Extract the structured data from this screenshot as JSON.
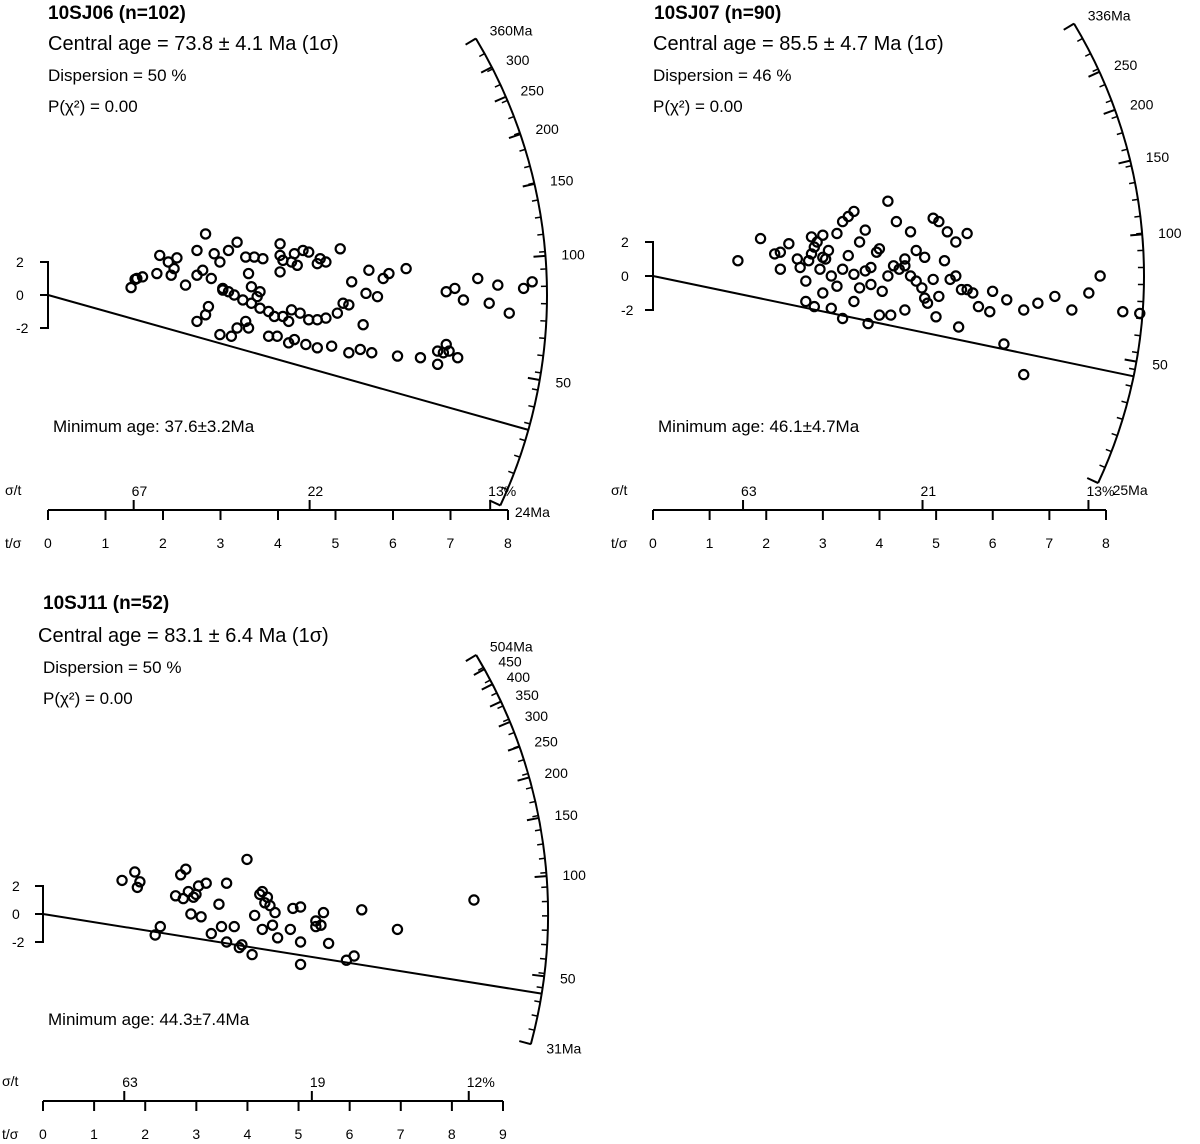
{
  "chart_data": [
    {
      "type": "scatter",
      "title": "10SJ06 (n=102)",
      "central_age": "Central age = 73.8 ± 4.1 Ma (1σ)",
      "dispersion": "Dispersion = 50 %",
      "p_chi2": "P(χ²) = 0.00",
      "minimum_age": "Minimum age: 37.6±3.2Ma",
      "min_age_ma": 37.6,
      "y_ticks": [
        "2",
        "0",
        "-2"
      ],
      "radial_ticks": [
        {
          "label": "360Ma",
          "age": 360
        },
        {
          "label": "300",
          "age": 300
        },
        {
          "label": "250",
          "age": 250
        },
        {
          "label": "200",
          "age": 200
        },
        {
          "label": "150",
          "age": 150
        },
        {
          "label": "100",
          "age": 100
        },
        {
          "label": "50",
          "age": 50
        },
        {
          "label": "24Ma",
          "age": 24
        }
      ],
      "sigma_t_label": "σ/t",
      "t_sigma_label": "t/σ",
      "sigma_t_ticks": [
        {
          "label": "67",
          "x": 1.49
        },
        {
          "label": "22",
          "x": 4.55
        },
        {
          "label": "13%",
          "x": 7.69
        }
      ],
      "t_sigma_ticks": [
        "0",
        "1",
        "2",
        "3",
        "4",
        "5",
        "6",
        "7",
        "8"
      ],
      "x": [
        1.45,
        1.55,
        1.52,
        1.65,
        1.9,
        1.95,
        2.15,
        2.25,
        2.1,
        2.2,
        2.6,
        2.6,
        2.4,
        2.75,
        2.9,
        2.7,
        2.85,
        3.0,
        3.05,
        3.15,
        3.3,
        3.45,
        3.5,
        3.55,
        3.65,
        3.7,
        3.75,
        3.6,
        4.05,
        4.05,
        4.1,
        4.25,
        4.35,
        4.05,
        4.3,
        4.45,
        4.55,
        4.7,
        4.75,
        4.85,
        5.1,
        5.3,
        5.55,
        5.6,
        5.75,
        5.85,
        5.95,
        6.25,
        6.95,
        7.1,
        7.25,
        7.5,
        7.7,
        7.85,
        8.05,
        8.3,
        8.45,
        2.6,
        2.8,
        3.05,
        3.15,
        3.25,
        3.4,
        3.55,
        3.7,
        3.85,
        3.95,
        4.1,
        4.2,
        4.25,
        4.4,
        4.55,
        4.7,
        4.85,
        5.05,
        5.15,
        5.25,
        5.5,
        2.75,
        3.0,
        3.2,
        3.3,
        3.45,
        3.5,
        3.85,
        4.0,
        4.2,
        4.3,
        4.5,
        4.7,
        4.95,
        5.25,
        5.45,
        5.65,
        6.1,
        6.5,
        6.8,
        6.9,
        6.95,
        7.0,
        7.15,
        6.8
      ],
      "y": [
        0.45,
        1.0,
        0.95,
        1.1,
        1.3,
        2.4,
        1.2,
        2.25,
        2.0,
        1.6,
        2.7,
        1.2,
        0.6,
        3.7,
        2.5,
        1.5,
        1.0,
        2.0,
        0.3,
        2.7,
        3.2,
        2.3,
        1.3,
        0.5,
        -0.1,
        0.2,
        2.2,
        2.3,
        3.1,
        2.4,
        2.1,
        2.0,
        1.8,
        1.4,
        2.5,
        2.7,
        2.6,
        1.9,
        2.2,
        2.0,
        2.8,
        0.8,
        0.1,
        1.5,
        -0.1,
        1.0,
        1.3,
        1.6,
        0.2,
        0.4,
        -0.3,
        1.0,
        -0.5,
        0.6,
        -1.1,
        0.4,
        0.8,
        -1.6,
        -0.7,
        0.4,
        0.2,
        0.0,
        -0.3,
        -0.5,
        -0.8,
        -1.0,
        -1.3,
        -1.3,
        -1.6,
        -0.9,
        -1.1,
        -1.5,
        -1.5,
        -1.4,
        -1.1,
        -0.5,
        -0.6,
        -1.8,
        -1.2,
        -2.4,
        -2.5,
        -2.0,
        -1.6,
        -2.0,
        -2.5,
        -2.5,
        -2.9,
        -2.7,
        -3.0,
        -3.2,
        -3.1,
        -3.5,
        -3.3,
        -3.5,
        -3.7,
        -3.8,
        -3.4,
        -3.5,
        -3.0,
        -3.4,
        -3.8,
        -4.2
      ]
    },
    {
      "type": "scatter",
      "title": "10SJ07 (n=90)",
      "central_age": "Central age = 85.5 ± 4.7 Ma (1σ)",
      "dispersion": "Dispersion = 46 %",
      "p_chi2": "P(χ²) = 0.00",
      "minimum_age": "Minimum age: 46.1±4.7Ma",
      "min_age_ma": 46.1,
      "y_ticks": [
        "2",
        "0",
        "-2"
      ],
      "radial_ticks": [
        {
          "label": "336Ma",
          "age": 336
        },
        {
          "label": "250",
          "age": 250
        },
        {
          "label": "200",
          "age": 200
        },
        {
          "label": "150",
          "age": 150
        },
        {
          "label": "100",
          "age": 100
        },
        {
          "label": "50",
          "age": 50
        },
        {
          "label": "25Ma",
          "age": 25
        }
      ],
      "sigma_t_label": "σ/t",
      "t_sigma_label": "t/σ",
      "sigma_t_ticks": [
        {
          "label": "63",
          "x": 1.59
        },
        {
          "label": "21",
          "x": 4.76
        },
        {
          "label": "13%",
          "x": 7.69
        }
      ],
      "t_sigma_ticks": [
        "0",
        "1",
        "2",
        "3",
        "4",
        "5",
        "6",
        "7",
        "8"
      ],
      "x": [
        1.5,
        1.9,
        2.15,
        2.25,
        2.4,
        2.25,
        2.55,
        2.6,
        2.8,
        2.85,
        2.9,
        3.0,
        3.1,
        3.25,
        3.35,
        3.45,
        3.55,
        3.65,
        3.75,
        3.85,
        4.0,
        4.15,
        4.3,
        4.45,
        4.55,
        4.65,
        4.8,
        4.95,
        5.05,
        5.2,
        5.35,
        5.55,
        2.7,
        2.75,
        2.8,
        2.95,
        3.0,
        3.05,
        3.15,
        3.25,
        3.35,
        3.45,
        3.55,
        3.65,
        3.75,
        3.85,
        3.95,
        4.05,
        4.15,
        4.25,
        4.35,
        4.45,
        4.55,
        4.65,
        4.75,
        4.85,
        4.95,
        5.05,
        5.15,
        5.25,
        5.35,
        5.45,
        5.55,
        5.65,
        5.75,
        6.0,
        6.25,
        6.55,
        6.8,
        7.1,
        7.4,
        7.7,
        7.9,
        8.3,
        8.6,
        2.7,
        2.85,
        3.0,
        3.15,
        3.35,
        3.55,
        3.8,
        4.0,
        4.2,
        4.45,
        4.8,
        5.0,
        5.4,
        5.95,
        6.2,
        6.55
      ],
      "y": [
        0.9,
        2.2,
        1.3,
        0.4,
        1.9,
        1.4,
        1.0,
        0.5,
        2.3,
        1.7,
        2.0,
        2.4,
        1.5,
        2.5,
        3.2,
        3.5,
        3.8,
        2.0,
        2.7,
        0.5,
        1.6,
        4.4,
        3.2,
        0.6,
        2.6,
        1.5,
        1.1,
        3.4,
        3.2,
        2.6,
        2.0,
        2.5,
        -0.3,
        0.9,
        1.3,
        0.4,
        1.1,
        1.0,
        0.0,
        -0.6,
        0.4,
        1.2,
        0.1,
        -0.7,
        0.3,
        -0.5,
        1.4,
        -0.9,
        0.0,
        0.6,
        0.4,
        1.0,
        0.0,
        -0.3,
        -0.7,
        -1.6,
        -0.2,
        -1.2,
        0.9,
        -0.2,
        0.0,
        -0.8,
        -0.8,
        -1.0,
        -1.8,
        -0.9,
        -1.4,
        -2.0,
        -1.6,
        -1.2,
        -2.0,
        -1.0,
        0.0,
        -2.1,
        -2.2,
        -1.5,
        -1.8,
        -1.0,
        -1.9,
        -2.5,
        -1.5,
        -2.8,
        -2.3,
        -2.3,
        -2.0,
        -1.3,
        -2.4,
        -3.0,
        -2.1,
        -4.0,
        -5.8
      ]
    },
    {
      "type": "scatter",
      "title": "10SJ11 (n=52)",
      "central_age": "Central age = 83.1 ± 6.4 Ma (1σ)",
      "dispersion": "Dispersion = 50 %",
      "p_chi2": "P(χ²) = 0.00",
      "minimum_age": "Minimum age: 44.3±7.4Ma",
      "min_age_ma": 44.3,
      "y_ticks": [
        "2",
        "0",
        "-2"
      ],
      "radial_ticks": [
        {
          "label": "504Ma",
          "age": 504
        },
        {
          "label": "450",
          "age": 450
        },
        {
          "label": "400",
          "age": 400
        },
        {
          "label": "350",
          "age": 350
        },
        {
          "label": "300",
          "age": 300
        },
        {
          "label": "250",
          "age": 250
        },
        {
          "label": "200",
          "age": 200
        },
        {
          "label": "150",
          "age": 150
        },
        {
          "label": "100",
          "age": 100
        },
        {
          "label": "50",
          "age": 50
        },
        {
          "label": "31Ma",
          "age": 31
        }
      ],
      "sigma_t_label": "σ/t",
      "t_sigma_label": "t/σ",
      "sigma_t_ticks": [
        {
          "label": "63",
          "x": 1.59
        },
        {
          "label": "19",
          "x": 5.26
        },
        {
          "label": "12%",
          "x": 8.33
        }
      ],
      "t_sigma_ticks": [
        "0",
        "1",
        "2",
        "3",
        "4",
        "5",
        "6",
        "7",
        "8",
        "9"
      ],
      "x": [
        1.55,
        1.8,
        1.9,
        1.85,
        2.2,
        2.3,
        2.7,
        2.8,
        2.85,
        2.95,
        3.05,
        3.2,
        3.45,
        3.6,
        4.0,
        4.25,
        4.3,
        4.35,
        4.4,
        4.45,
        4.55,
        4.9,
        5.05,
        5.35,
        5.45,
        5.5,
        6.25,
        6.95,
        8.45,
        2.6,
        2.75,
        2.9,
        3.0,
        3.1,
        3.3,
        3.5,
        3.6,
        3.75,
        3.85,
        4.15,
        4.3,
        4.5,
        4.6,
        4.85,
        5.05,
        5.35,
        5.6,
        5.95,
        6.1,
        5.05,
        4.1,
        3.9
      ],
      "y": [
        2.4,
        3.0,
        2.3,
        1.9,
        -1.5,
        -0.9,
        2.8,
        3.2,
        1.6,
        1.2,
        2.0,
        2.2,
        0.7,
        2.2,
        3.9,
        1.4,
        1.6,
        0.8,
        1.2,
        0.6,
        0.1,
        0.4,
        0.5,
        -0.5,
        -0.8,
        0.1,
        0.3,
        -1.1,
        1.0,
        1.3,
        1.1,
        0.0,
        1.4,
        -0.2,
        -1.4,
        -0.9,
        -2.0,
        -0.9,
        -2.4,
        -0.1,
        -1.1,
        -0.8,
        -1.7,
        -1.1,
        -2.0,
        -0.9,
        -2.1,
        -3.3,
        -3.0,
        -3.6,
        -2.9,
        -2.2
      ]
    }
  ]
}
